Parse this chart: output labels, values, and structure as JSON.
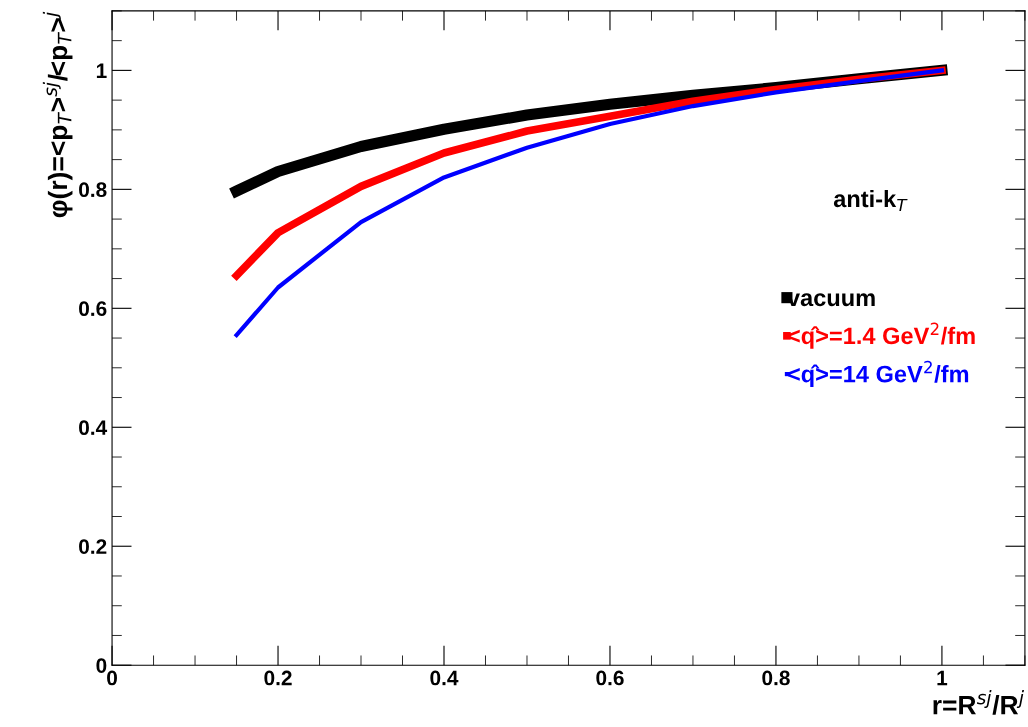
{
  "chart_data": {
    "type": "line",
    "xlabel": "r=R$^{sj}$/R$^{j}$",
    "ylabel": "φ(r)=<p$_{T}$>$^{sj}$/<p$_{T}$>$^{j}$",
    "x": [
      0.15,
      0.2,
      0.3,
      0.4,
      0.5,
      0.6,
      0.7,
      0.8,
      0.9,
      1.0
    ],
    "series": [
      {
        "name": "vacuum",
        "color": "#000000",
        "values": [
          0.797,
          0.83,
          0.872,
          0.901,
          0.925,
          0.943,
          0.958,
          0.971,
          0.986,
          1.0
        ]
      },
      {
        "name": "<q̂>=1.4 GeV$^{2}$/fm",
        "color": "#ff0000",
        "values": [
          0.655,
          0.727,
          0.805,
          0.861,
          0.898,
          0.923,
          0.948,
          0.968,
          0.985,
          1.0
        ]
      },
      {
        "name": "<q̂>=14 GeV$^{2}$/fm",
        "color": "#0000ff",
        "values": [
          0.555,
          0.635,
          0.745,
          0.82,
          0.87,
          0.91,
          0.94,
          0.963,
          0.982,
          1.0
        ]
      }
    ],
    "annotations": [
      "anti-k$_{T}$"
    ],
    "xlim": [
      0,
      1.1
    ],
    "ylim": [
      0,
      1.1
    ],
    "xticks": [
      0,
      0.2,
      0.4,
      0.6,
      0.8,
      1
    ],
    "yticks": [
      0,
      0.2,
      0.4,
      0.6,
      0.8,
      1
    ],
    "legend": "right",
    "grid": false,
    "marker": "none",
    "line_style": "solid"
  }
}
